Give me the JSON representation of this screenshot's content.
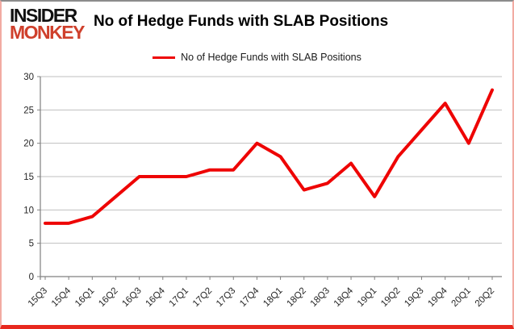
{
  "logo": {
    "line1": "INSIDER",
    "line2": "MONKEY"
  },
  "title": "No of Hedge Funds with SLAB Positions",
  "legend": {
    "label": "No of Hedge Funds with SLAB Positions"
  },
  "colors": {
    "line": "#ee0404",
    "gridline": "#bfbfbf",
    "axis": "#808080",
    "tick_label": "#262626",
    "logo_red": "#cf402c",
    "frame_bottom": "#e8281e"
  },
  "chart_data": {
    "type": "line",
    "title": "No of Hedge Funds with SLAB Positions",
    "series_name": "No of Hedge Funds with SLAB Positions",
    "categories": [
      "15Q3",
      "15Q4",
      "16Q1",
      "16Q2",
      "16Q3",
      "16Q4",
      "17Q1",
      "17Q2",
      "17Q3",
      "17Q4",
      "18Q1",
      "18Q2",
      "18Q3",
      "18Q4",
      "19Q1",
      "19Q2",
      "19Q3",
      "19Q4",
      "20Q1",
      "20Q2"
    ],
    "values": [
      8,
      8,
      9,
      12,
      15,
      15,
      15,
      16,
      16,
      20,
      18,
      13,
      14,
      17,
      12,
      18,
      22,
      26,
      20,
      28
    ],
    "xlabel": "",
    "ylabel": "",
    "ylim": [
      0,
      30
    ],
    "ytick_step": 5,
    "grid": true,
    "legend_position": "top-center",
    "line_width": 4
  }
}
